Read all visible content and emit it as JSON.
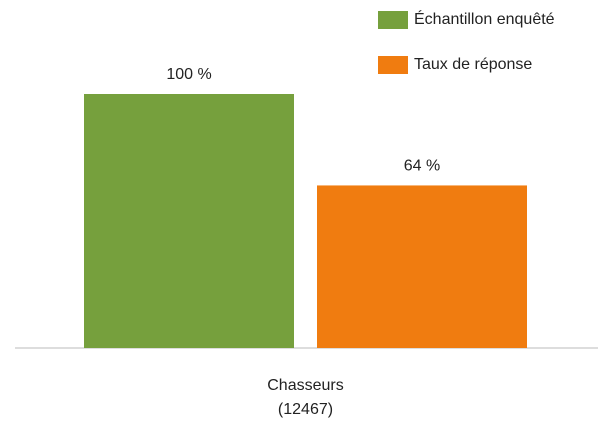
{
  "chart_data": {
    "type": "bar",
    "categories": [
      "Chasseurs\n(12467)"
    ],
    "series": [
      {
        "name": "Échantillon enquêté",
        "color": "#76a03d",
        "values": [
          100
        ],
        "value_labels": [
          "100 %"
        ]
      },
      {
        "name": "Taux de réponse",
        "color": "#f07c10",
        "values": [
          64
        ],
        "value_labels": [
          "64 %"
        ]
      }
    ],
    "legend": "top-right"
  }
}
